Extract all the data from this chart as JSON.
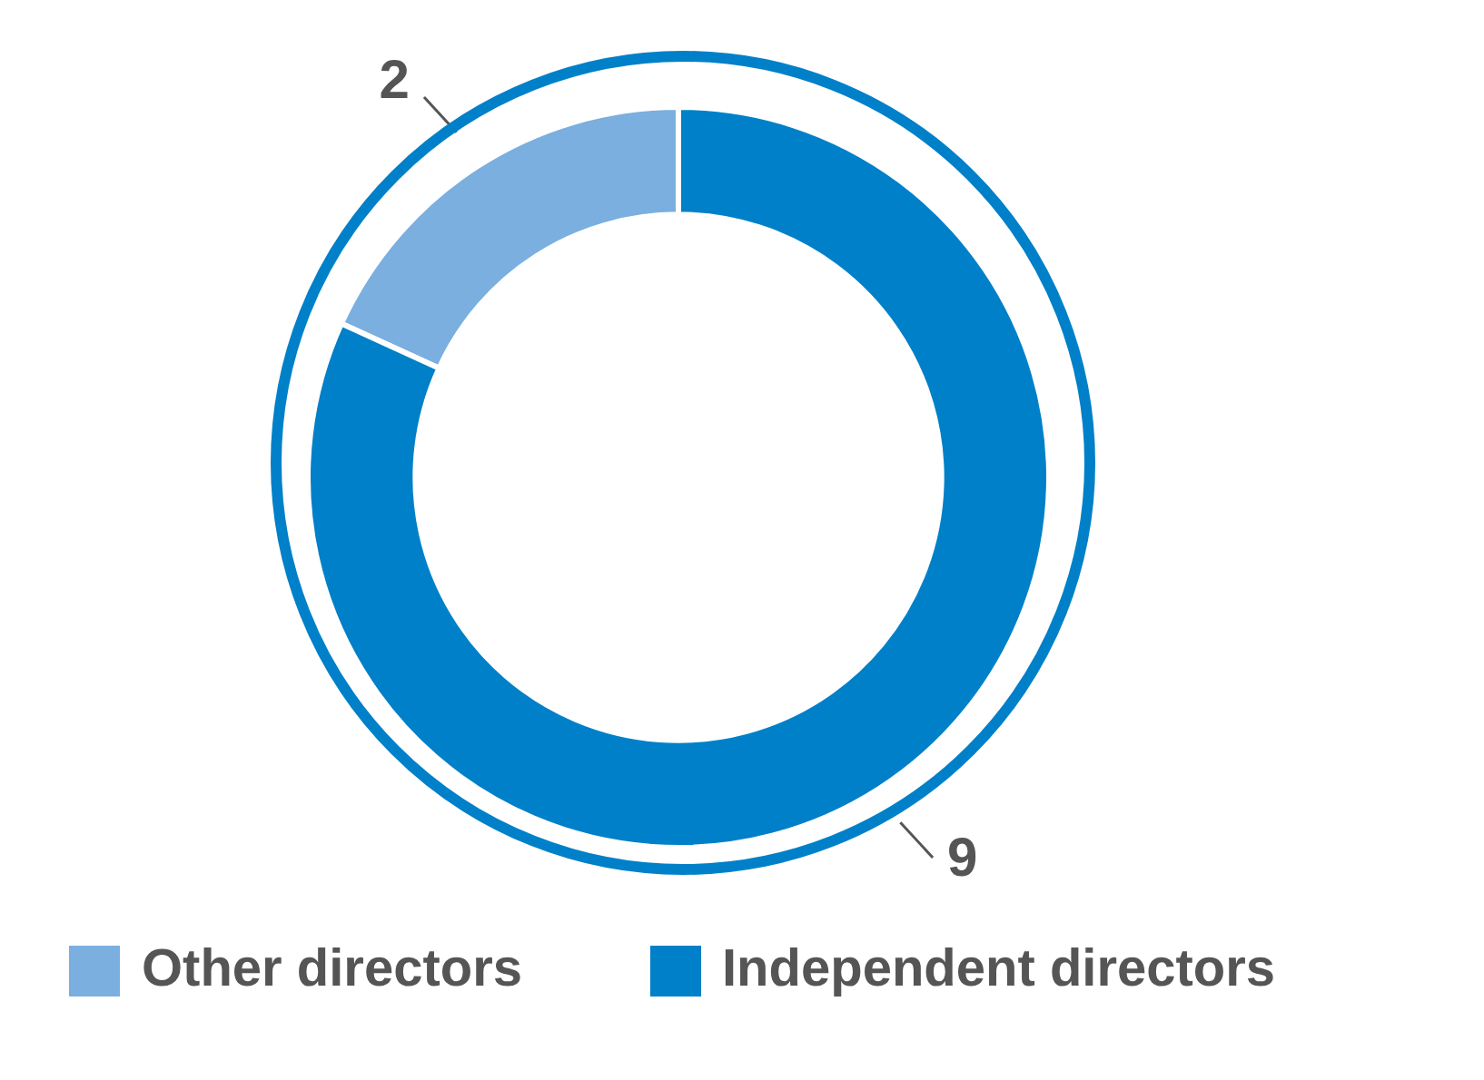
{
  "chart_data": {
    "type": "donut",
    "categories": [
      "Other directors",
      "Independent directors"
    ],
    "values": [
      2,
      9
    ],
    "colors": [
      "#7aafdf",
      "#0080c8"
    ],
    "data_labels": true,
    "legend": "bottom"
  }
}
